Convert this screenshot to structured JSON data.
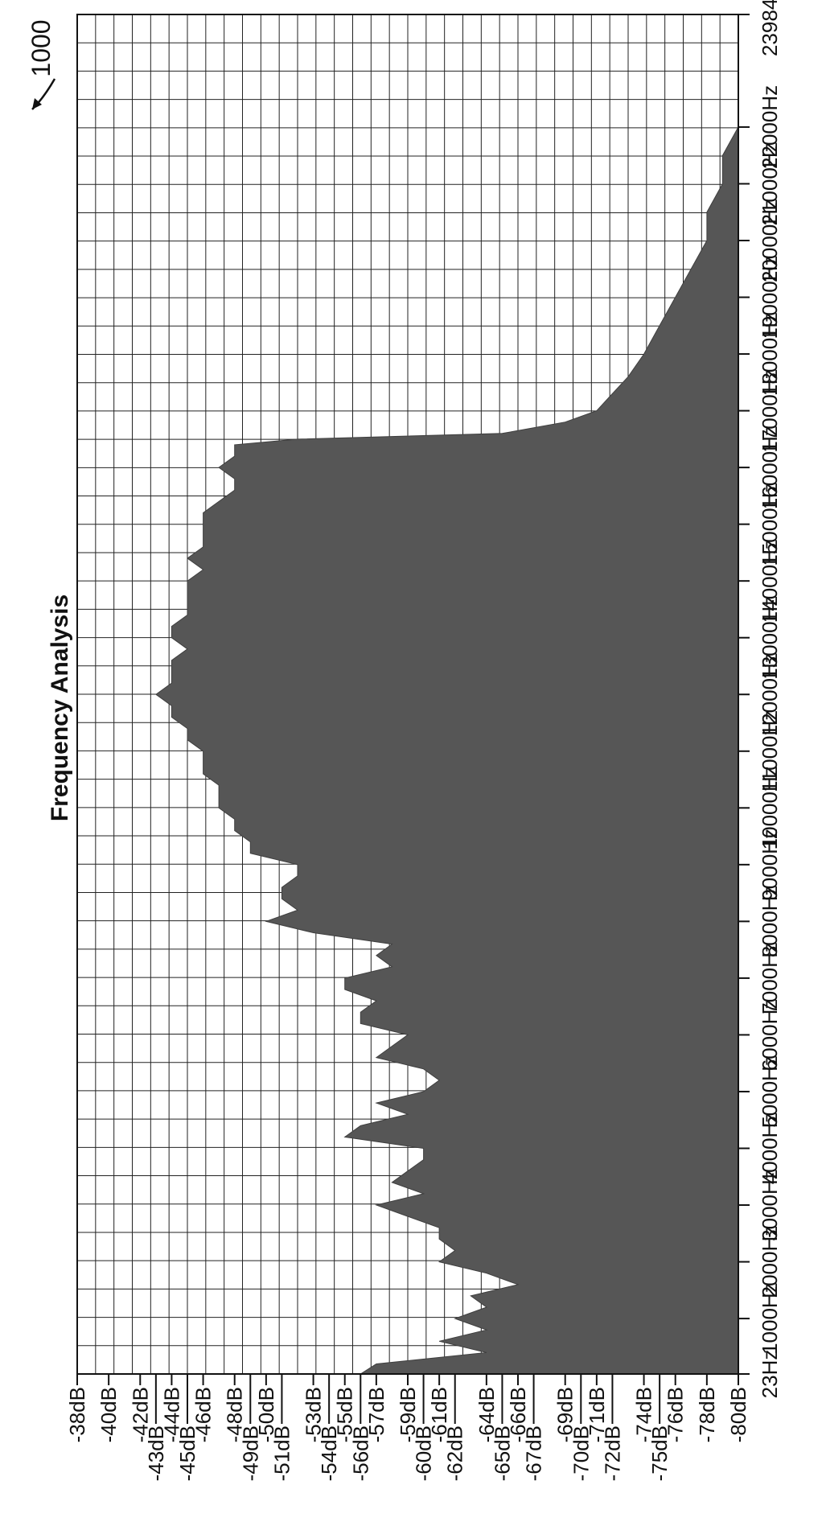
{
  "figure": {
    "reference_numeral": "1000"
  },
  "chart_data": {
    "type": "area",
    "title": "Frequency Analysis",
    "xlabel": "",
    "ylabel": "",
    "orientation": "rotated 90 degrees counter-clockwise",
    "grid": true,
    "fill_color": "#565656",
    "x_ticks": [
      {
        "value": 23,
        "label": "23Hz"
      },
      {
        "value": 1000,
        "label": "1000Hz"
      },
      {
        "value": 2000,
        "label": "2000Hz"
      },
      {
        "value": 3000,
        "label": "3000Hz"
      },
      {
        "value": 4000,
        "label": "4000Hz"
      },
      {
        "value": 5000,
        "label": "5000Hz"
      },
      {
        "value": 6000,
        "label": "6000Hz"
      },
      {
        "value": 7000,
        "label": "7000Hz"
      },
      {
        "value": 8000,
        "label": "8000Hz"
      },
      {
        "value": 9000,
        "label": "9000Hz"
      },
      {
        "value": 10000,
        "label": "10000Hz"
      },
      {
        "value": 11000,
        "label": "11000Hz"
      },
      {
        "value": 12000,
        "label": "12000Hz"
      },
      {
        "value": 13000,
        "label": "13000Hz"
      },
      {
        "value": 14000,
        "label": "14000Hz"
      },
      {
        "value": 15000,
        "label": "15000Hz"
      },
      {
        "value": 16000,
        "label": "16000Hz"
      },
      {
        "value": 17000,
        "label": "17000Hz"
      },
      {
        "value": 18000,
        "label": "18000Hz"
      },
      {
        "value": 19000,
        "label": "19000Hz"
      },
      {
        "value": 20000,
        "label": "20000Hz"
      },
      {
        "value": 21000,
        "label": "21000Hz"
      },
      {
        "value": 22000,
        "label": "22000Hz"
      },
      {
        "value": 23984,
        "label": "23984Hz"
      }
    ],
    "y_ticks": [
      {
        "value": -38,
        "label": "-38dB"
      },
      {
        "value": -40,
        "label": "-40dB"
      },
      {
        "value": -42,
        "label": "-42dB"
      },
      {
        "value": -43,
        "label": "-43dB"
      },
      {
        "value": -44,
        "label": "-44dB"
      },
      {
        "value": -45,
        "label": "-45dB"
      },
      {
        "value": -46,
        "label": "-46dB"
      },
      {
        "value": -48,
        "label": "-48dB"
      },
      {
        "value": -49,
        "label": "-49dB"
      },
      {
        "value": -50,
        "label": "-50dB"
      },
      {
        "value": -51,
        "label": "-51dB"
      },
      {
        "value": -53,
        "label": "-53dB"
      },
      {
        "value": -54,
        "label": "-54dB"
      },
      {
        "value": -55,
        "label": "-55dB"
      },
      {
        "value": -56,
        "label": "-56dB"
      },
      {
        "value": -57,
        "label": "-57dB"
      },
      {
        "value": -59,
        "label": "-59dB"
      },
      {
        "value": -60,
        "label": "-60dB"
      },
      {
        "value": -61,
        "label": "-61dB"
      },
      {
        "value": -62,
        "label": "-62dB"
      },
      {
        "value": -64,
        "label": "-64dB"
      },
      {
        "value": -65,
        "label": "-65dB"
      },
      {
        "value": -66,
        "label": "-66dB"
      },
      {
        "value": -67,
        "label": "-67dB"
      },
      {
        "value": -69,
        "label": "-69dB"
      },
      {
        "value": -70,
        "label": "-70dB"
      },
      {
        "value": -71,
        "label": "-71dB"
      },
      {
        "value": -72,
        "label": "-72dB"
      },
      {
        "value": -74,
        "label": "-74dB"
      },
      {
        "value": -75,
        "label": "-75dB"
      },
      {
        "value": -76,
        "label": "-76dB"
      },
      {
        "value": -78,
        "label": "-78dB"
      },
      {
        "value": -80,
        "label": "-80dB"
      }
    ],
    "xlim": [
      23,
      23984
    ],
    "ylim": [
      -80,
      -38
    ],
    "series": [
      {
        "x": [
          23,
          200,
          400,
          600,
          800,
          1000,
          1200,
          1400,
          1600,
          1800,
          2000,
          2200,
          2400,
          2600,
          2800,
          3000,
          3200,
          3400,
          3600,
          3800,
          4000,
          4200,
          4400,
          4600,
          4800,
          5000,
          5200,
          5400,
          5600,
          5800,
          6000,
          6200,
          6400,
          6600,
          6800,
          7000,
          7200,
          7400,
          7600,
          7800,
          8000,
          8200,
          8400,
          8600,
          8800,
          9000,
          9200,
          9400,
          9600,
          9800,
          10000,
          10200,
          10400,
          10600,
          10800,
          11000,
          11200,
          11400,
          11600,
          11800,
          12000,
          12200,
          12400,
          12600,
          12800,
          13000,
          13200,
          13400,
          13600,
          13800,
          14000,
          14200,
          14400,
          14600,
          14800,
          15000,
          15200,
          15400,
          15600,
          15800,
          16000,
          16200,
          16300,
          16400,
          16500,
          16600,
          16800,
          17000,
          17300,
          17600,
          18000,
          18500,
          19000,
          19500,
          20000,
          20500,
          21000,
          21500,
          22000,
          22500,
          23000,
          23500,
          23984
        ],
        "y": [
          -56,
          -57,
          -64,
          -61,
          -64,
          -62,
          -64,
          -63,
          -66,
          -64,
          -61,
          -62,
          -61,
          -61,
          -59,
          -57,
          -60,
          -58,
          -59,
          -60,
          -60,
          -55,
          -56,
          -59,
          -57,
          -60,
          -61,
          -60,
          -57,
          -58,
          -59,
          -56,
          -56,
          -57,
          -55,
          -55,
          -58,
          -57,
          -58,
          -53,
          -50,
          -52,
          -51,
          -51,
          -52,
          -52,
          -49,
          -49,
          -48,
          -48,
          -47,
          -47,
          -47,
          -46,
          -46,
          -46,
          -45,
          -45,
          -44,
          -44,
          -43,
          -44,
          -44,
          -44,
          -45,
          -44,
          -44,
          -45,
          -45,
          -45,
          -45,
          -46,
          -45,
          -46,
          -46,
          -46,
          -46,
          -47,
          -48,
          -48,
          -47,
          -48,
          -48,
          -48,
          -52,
          -65,
          -69,
          -71,
          -72,
          -73,
          -74,
          -75,
          -76,
          -77,
          -78,
          -78,
          -79,
          -79,
          -80,
          -80,
          -80,
          -80,
          -80
        ]
      }
    ]
  }
}
